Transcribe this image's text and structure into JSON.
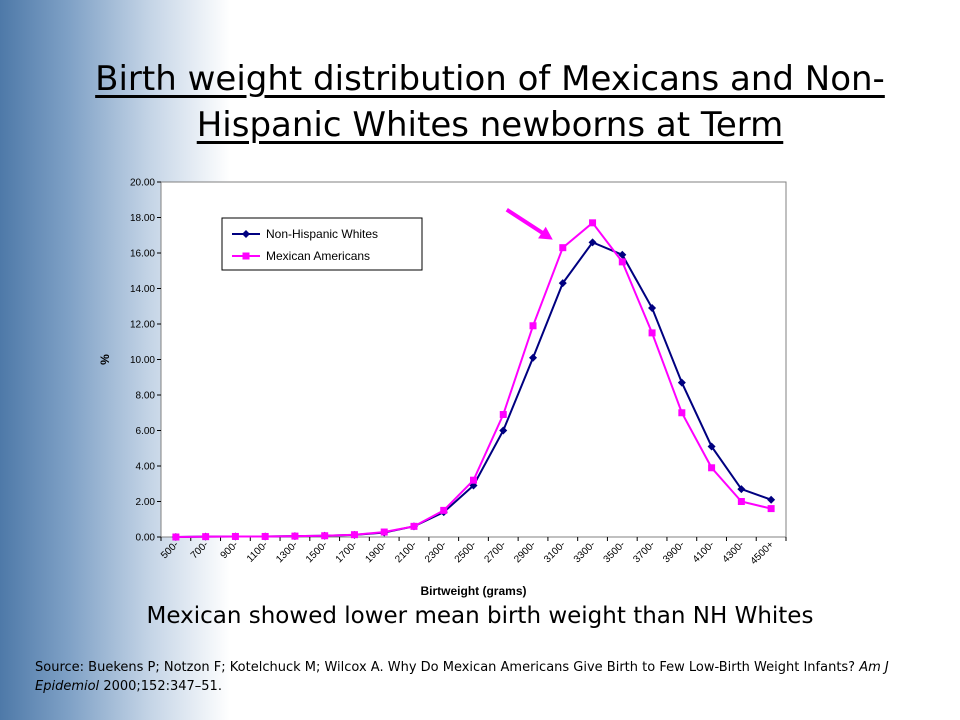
{
  "slide": {
    "title": "Birth weight distribution of Mexicans and Non-Hispanic Whites newborns at Term",
    "conclusion": "Mexican showed lower mean birth weight than NH Whites",
    "source": {
      "prefix": "Source: Buekens P; Notzon F; Kotelchuck M; Wilcox A. Why Do Mexican Americans Give Birth to Few Low-Birth Weight Infants?",
      "journal": "Am J Epidemiol",
      "citation": "2000;152:347–51."
    }
  },
  "chart_data": {
    "type": "line",
    "xlabel": "Birtweight (grams)",
    "ylabel": "%",
    "ylim": [
      0,
      20
    ],
    "ytick_labels": [
      "0.00",
      "2.00",
      "4.00",
      "6.00",
      "8.00",
      "10.00",
      "12.00",
      "14.00",
      "16.00",
      "18.00",
      "20.00"
    ],
    "categories": [
      "500-",
      "700-",
      "900-",
      "1100-",
      "1300-",
      "1500-",
      "1700-",
      "1900-",
      "2100-",
      "2300-",
      "2500-",
      "2700-",
      "2900-",
      "3100-",
      "3300-",
      "3500-",
      "3700-",
      "3900-",
      "4100-",
      "4300-",
      "4500+"
    ],
    "legend_position": "top-left",
    "grid": false,
    "series": [
      {
        "name": "Non-Hispanic Whites",
        "color": "#000080",
        "marker": "diamond",
        "values": [
          0.0,
          0.02,
          0.03,
          0.03,
          0.05,
          0.07,
          0.12,
          0.25,
          0.6,
          1.4,
          2.9,
          6.0,
          10.1,
          14.3,
          16.6,
          15.9,
          12.9,
          8.7,
          5.1,
          2.7,
          2.1
        ]
      },
      {
        "name": "Mexican Americans",
        "color": "#ff00ff",
        "marker": "square",
        "values": [
          0.0,
          0.02,
          0.03,
          0.03,
          0.05,
          0.07,
          0.13,
          0.28,
          0.6,
          1.5,
          3.2,
          6.9,
          11.9,
          16.3,
          17.7,
          15.5,
          11.5,
          7.0,
          3.9,
          2.0,
          1.6
        ]
      }
    ],
    "annotation": {
      "type": "arrow",
      "color": "#ff00ff",
      "points_to_category": "3100-"
    }
  }
}
